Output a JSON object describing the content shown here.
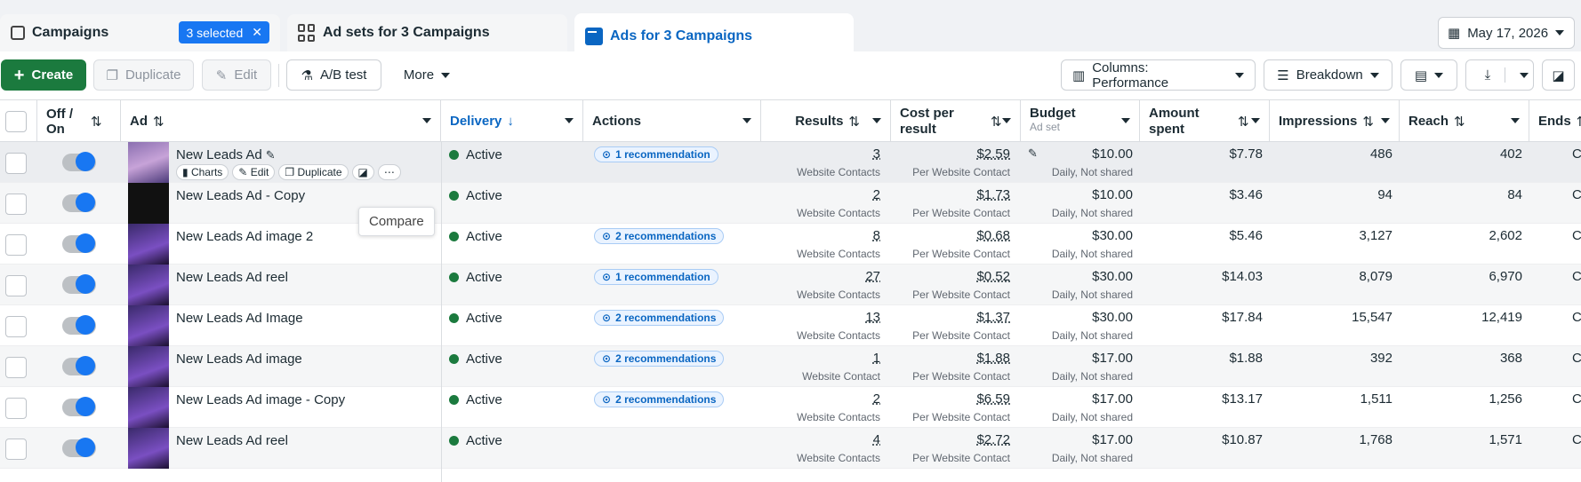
{
  "tabs": [
    {
      "label": "Campaigns",
      "badge": "3 selected"
    },
    {
      "label": "Ad sets for 3 Campaigns"
    },
    {
      "label": "Ads for 3 Campaigns"
    }
  ],
  "date_range": "May 17, 2026",
  "toolbar": {
    "create": "Create",
    "duplicate": "Duplicate",
    "edit": "Edit",
    "ab_test": "A/B test",
    "more": "More",
    "columns": "Columns: Performance",
    "breakdown": "Breakdown"
  },
  "headers": {
    "offon": "Off / On",
    "ad": "Ad",
    "delivery": "Delivery",
    "actions": "Actions",
    "results": "Results",
    "cost_per_result": "Cost per result",
    "budget": "Budget",
    "budget_sub": "Ad set",
    "amount_spent": "Amount spent",
    "impressions": "Impressions",
    "reach": "Reach",
    "ends": "Ends"
  },
  "row_actions": {
    "charts": "Charts",
    "edit": "Edit",
    "duplicate": "Duplicate"
  },
  "tooltip": "Compare",
  "rows": [
    {
      "name": "New Leads Ad",
      "delivery": "Active",
      "rec": "1 recommendation",
      "results": "3",
      "results_sub": "Website Contacts",
      "cpr": "$2.59",
      "cpr_sub": "Per Website Contact",
      "budget": "$10.00",
      "budget_sub": "Daily, Not shared",
      "spent": "$7.78",
      "impressions": "486",
      "reach": "402",
      "ends": "C"
    },
    {
      "name": "New Leads Ad - Copy",
      "delivery": "Active",
      "rec": "",
      "results": "2",
      "results_sub": "Website Contacts",
      "cpr": "$1.73",
      "cpr_sub": "Per Website Contact",
      "budget": "$10.00",
      "budget_sub": "Daily, Not shared",
      "spent": "$3.46",
      "impressions": "94",
      "reach": "84",
      "ends": "C"
    },
    {
      "name": "New Leads Ad image 2",
      "delivery": "Active",
      "rec": "2 recommendations",
      "results": "8",
      "results_sub": "Website Contacts",
      "cpr": "$0.68",
      "cpr_sub": "Per Website Contact",
      "budget": "$30.00",
      "budget_sub": "Daily, Not shared",
      "spent": "$5.46",
      "impressions": "3,127",
      "reach": "2,602",
      "ends": "C"
    },
    {
      "name": "New Leads Ad reel",
      "delivery": "Active",
      "rec": "1 recommendation",
      "results": "27",
      "results_sub": "Website Contacts",
      "cpr": "$0.52",
      "cpr_sub": "Per Website Contact",
      "budget": "$30.00",
      "budget_sub": "Daily, Not shared",
      "spent": "$14.03",
      "impressions": "8,079",
      "reach": "6,970",
      "ends": "C"
    },
    {
      "name": "New Leads Ad Image",
      "delivery": "Active",
      "rec": "2 recommendations",
      "results": "13",
      "results_sub": "Website Contacts",
      "cpr": "$1.37",
      "cpr_sub": "Per Website Contact",
      "budget": "$30.00",
      "budget_sub": "Daily, Not shared",
      "spent": "$17.84",
      "impressions": "15,547",
      "reach": "12,419",
      "ends": "C"
    },
    {
      "name": "New Leads Ad image",
      "delivery": "Active",
      "rec": "2 recommendations",
      "results": "1",
      "results_sub": "Website Contact",
      "cpr": "$1.88",
      "cpr_sub": "Per Website Contact",
      "budget": "$17.00",
      "budget_sub": "Daily, Not shared",
      "spent": "$1.88",
      "impressions": "392",
      "reach": "368",
      "ends": "C"
    },
    {
      "name": "New Leads Ad image - Copy",
      "delivery": "Active",
      "rec": "2 recommendations",
      "results": "2",
      "results_sub": "Website Contacts",
      "cpr": "$6.59",
      "cpr_sub": "Per Website Contact",
      "budget": "$17.00",
      "budget_sub": "Daily, Not shared",
      "spent": "$13.17",
      "impressions": "1,511",
      "reach": "1,256",
      "ends": "C"
    },
    {
      "name": "New Leads Ad reel",
      "delivery": "Active",
      "rec": "",
      "results": "4",
      "results_sub": "Website Contacts",
      "cpr": "$2.72",
      "cpr_sub": "Per Website Contact",
      "budget": "$17.00",
      "budget_sub": "Daily, Not shared",
      "spent": "$10.87",
      "impressions": "1,768",
      "reach": "1,571",
      "ends": "C"
    }
  ]
}
